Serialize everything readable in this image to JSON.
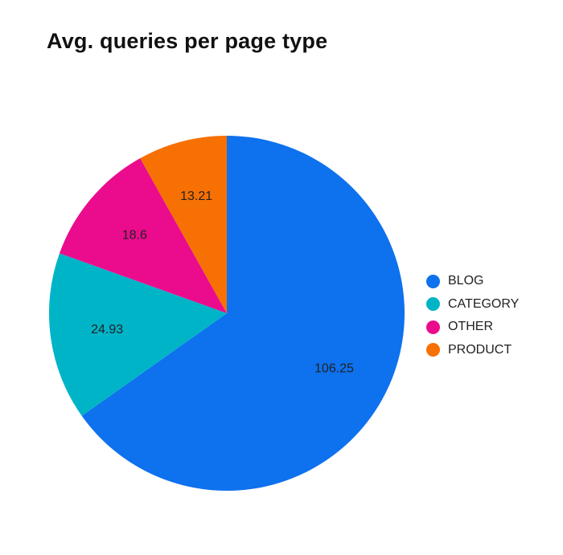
{
  "chart_data": {
    "type": "pie",
    "title": "Avg. queries per page type",
    "categories": [
      "BLOG",
      "CATEGORY",
      "OTHER",
      "PRODUCT"
    ],
    "values": [
      106.25,
      24.93,
      18.6,
      13.21
    ],
    "data_labels": [
      "106.25",
      "24.93",
      "18.6",
      "13.21"
    ],
    "colors": [
      "#0e71ee",
      "#00b4c8",
      "#ea0c8c",
      "#f77003"
    ],
    "start_angle_deg": 0,
    "direction": "clockwise",
    "legend_position": "right"
  }
}
